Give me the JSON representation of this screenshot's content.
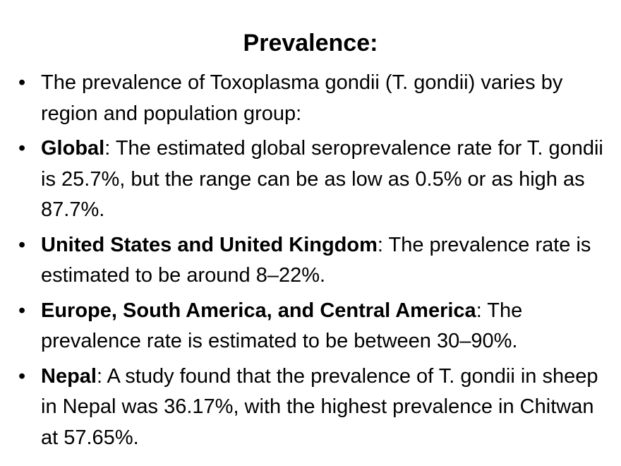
{
  "slide": {
    "title": "Prevalence:",
    "bullet_symbol": "•",
    "bullets": [
      {
        "bold": "",
        "text": "The prevalence of Toxoplasma gondii (T. gondii) varies by region and population group:"
      },
      {
        "bold": "Global",
        "text": ": The estimated global seroprevalence rate for T. gondii is 25.7%, but the range can be as low as 0.5% or as high as 87.7%."
      },
      {
        "bold": "United States and United Kingdom",
        "text": ": The prevalence rate is estimated to be around 8–22%."
      },
      {
        "bold": "Europe, South America, and Central America",
        "text": ": The prevalence rate is estimated to be between 30–90%."
      },
      {
        "bold": "Nepal",
        "text": ": A study found that the prevalence of T. gondii in sheep in Nepal was 36.17%, with the highest prevalence in Chitwan at 57.65%."
      }
    ]
  }
}
